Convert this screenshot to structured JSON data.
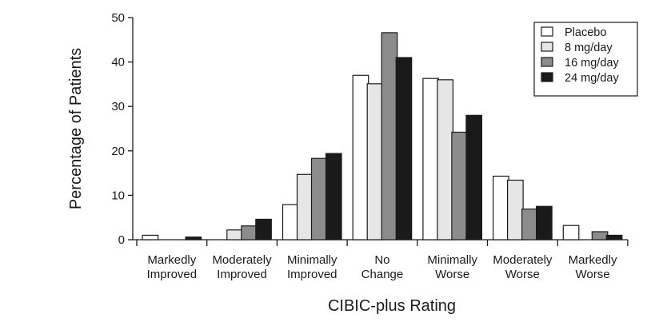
{
  "chart_data": {
    "type": "bar",
    "title": "",
    "xlabel": "CIBIC-plus Rating",
    "ylabel": "Percentage of Patients",
    "ylim": [
      0,
      50
    ],
    "yticks": [
      0,
      10,
      20,
      30,
      40,
      50
    ],
    "grid": false,
    "legend_position": "top-right",
    "categories": [
      [
        "Markedly",
        "Improved"
      ],
      [
        "Moderately",
        "Improved"
      ],
      [
        "Minimally",
        "Improved"
      ],
      [
        "No",
        "Change"
      ],
      [
        "Minimally",
        "Worse"
      ],
      [
        "Moderately",
        "Worse"
      ],
      [
        "Markedly",
        "Worse"
      ]
    ],
    "series": [
      {
        "name": "Placebo",
        "color": "#ffffff",
        "values": [
          1.0,
          0,
          7.9,
          37.0,
          36.3,
          14.3,
          3.2
        ]
      },
      {
        "name": "8 mg/day",
        "color": "#e6e6e6",
        "values": [
          0,
          2.2,
          14.7,
          35.1,
          36.0,
          13.4,
          0
        ]
      },
      {
        "name": "16 mg/day",
        "color": "#8c8c8c",
        "values": [
          0,
          3.1,
          18.3,
          46.6,
          24.2,
          6.9,
          1.8
        ]
      },
      {
        "name": "24 mg/day",
        "color": "#1a1a1a",
        "values": [
          0.6,
          4.6,
          19.4,
          41.0,
          28.0,
          7.5,
          1.0
        ]
      }
    ]
  }
}
